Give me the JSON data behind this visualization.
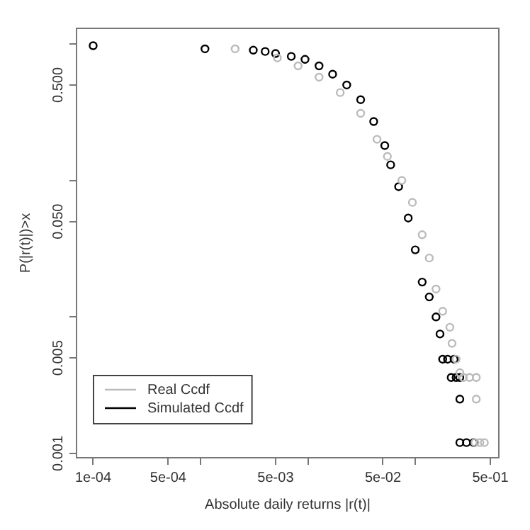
{
  "chart_data": {
    "type": "scatter",
    "xlabel": "Absolute daily returns |r(t)|",
    "ylabel": "P(|r(t)|)>x",
    "log": "xy",
    "grid": false,
    "legend": "bottom left",
    "marker": "circle",
    "xlim": [
      7e-05,
      0.6
    ],
    "ylim": [
      0.00093,
      1.3
    ],
    "xticks": [
      {
        "value": 0.0001,
        "label": "1e-04"
      },
      {
        "value": 0.0005,
        "label": "5e-04"
      },
      {
        "value": 0.001,
        "label": null
      },
      {
        "value": 0.005,
        "label": "5e-03"
      },
      {
        "value": 0.01,
        "label": null
      },
      {
        "value": 0.05,
        "label": "5e-02"
      },
      {
        "value": 0.1,
        "label": null
      },
      {
        "value": 0.5,
        "label": "5e-01"
      }
    ],
    "yticks": [
      {
        "value": 0.001,
        "label": "0.001"
      },
      {
        "value": 0.005,
        "label": "0.005"
      },
      {
        "value": 0.01,
        "label": null
      },
      {
        "value": 0.05,
        "label": "0.050"
      },
      {
        "value": 0.1,
        "label": null
      },
      {
        "value": 0.5,
        "label": "0.500"
      },
      {
        "value": 1,
        "label": null
      }
    ],
    "series": [
      {
        "name": "Real Ccdf",
        "color": "#bbbbbb",
        "x": [
          0.0021,
          0.0052,
          0.0081,
          0.0127,
          0.02,
          0.031,
          0.044,
          0.055,
          0.075,
          0.094,
          0.116,
          0.135,
          0.156,
          0.18,
          0.21,
          0.22,
          0.24,
          0.26,
          0.28,
          0.32,
          0.37,
          0.37,
          0.36,
          0.4,
          0.44
        ],
        "values": [
          0.92,
          0.79,
          0.69,
          0.57,
          0.44,
          0.31,
          0.2,
          0.15,
          0.1,
          0.069,
          0.04,
          0.027,
          0.016,
          0.011,
          0.0084,
          0.0064,
          0.0049,
          0.0039,
          0.0036,
          0.0036,
          0.0036,
          0.0025,
          0.0012,
          0.0012,
          0.0012
        ]
      },
      {
        "name": "Simulated Ccdf",
        "color": "#000000",
        "x": [
          0.0001,
          0.0011,
          0.0031,
          0.004,
          0.005,
          0.007,
          0.0094,
          0.0127,
          0.017,
          0.023,
          0.031,
          0.041,
          0.052,
          0.059,
          0.07,
          0.086,
          0.1,
          0.116,
          0.135,
          0.156,
          0.17,
          0.18,
          0.2,
          0.23,
          0.216,
          0.24,
          0.26,
          0.26,
          0.26,
          0.3,
          0.35
        ],
        "values": [
          0.97,
          0.92,
          0.9,
          0.88,
          0.85,
          0.81,
          0.77,
          0.69,
          0.6,
          0.5,
          0.39,
          0.27,
          0.18,
          0.13,
          0.09,
          0.053,
          0.031,
          0.018,
          0.014,
          0.01,
          0.0075,
          0.0049,
          0.0049,
          0.0049,
          0.0036,
          0.0036,
          0.0036,
          0.0025,
          0.0012,
          0.0012,
          0.0012
        ]
      }
    ]
  }
}
